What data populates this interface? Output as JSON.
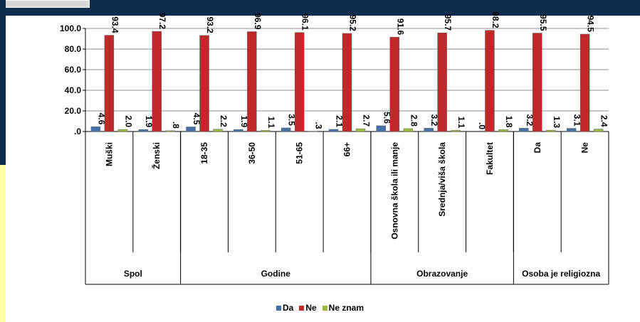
{
  "chart_data": {
    "type": "bar",
    "categories": [
      "Muški",
      "Ženski",
      "18-35",
      "36-50",
      "51-65",
      "66+",
      "Osnovna škola ili manje",
      "Srednja/viša škola",
      "Fakultet",
      "Da",
      "Ne"
    ],
    "groups": [
      {
        "label": "Spol",
        "count": 2
      },
      {
        "label": "Godine",
        "count": 4
      },
      {
        "label": "Obrazovanje",
        "count": 3
      },
      {
        "label": "Osoba je religiozna",
        "count": 2
      }
    ],
    "series": [
      {
        "name": "Da",
        "color": "#4472a8",
        "values": [
          4.6,
          1.9,
          4.5,
          1.9,
          3.5,
          2.1,
          5.6,
          3.2,
          0.0,
          3.2,
          3.1
        ],
        "labels": [
          "4.6",
          "1.9",
          "4.5",
          "1.9",
          "3.5",
          "2.1",
          "5.6",
          "3.2",
          ".0",
          "3.2",
          "3.1"
        ]
      },
      {
        "name": "Ne",
        "color": "#c0292b",
        "values": [
          93.4,
          97.2,
          93.2,
          96.9,
          96.1,
          95.2,
          91.6,
          95.7,
          98.2,
          95.5,
          94.5
        ],
        "labels": [
          "93.4",
          "97.2",
          "93.2",
          "96.9",
          "96.1",
          "95.2",
          "91.6",
          "95.7",
          "98.2",
          "95.5",
          "94.5"
        ]
      },
      {
        "name": "Ne znam",
        "color": "#9bbb3a",
        "values": [
          2.0,
          0.8,
          2.2,
          1.1,
          0.3,
          2.7,
          2.8,
          1.1,
          1.8,
          1.3,
          2.4
        ],
        "labels": [
          "2.0",
          ".8",
          "2.2",
          "1.1",
          ".3",
          "2.7",
          "2.8",
          "1.1",
          "1.8",
          "1.3",
          "2.4"
        ]
      }
    ],
    "yticks": [
      "100.0",
      "80.0",
      "60.0",
      "40.0",
      "20.0",
      ".0"
    ],
    "ylim": [
      0,
      100
    ],
    "grid": true,
    "legend": "bottom"
  }
}
